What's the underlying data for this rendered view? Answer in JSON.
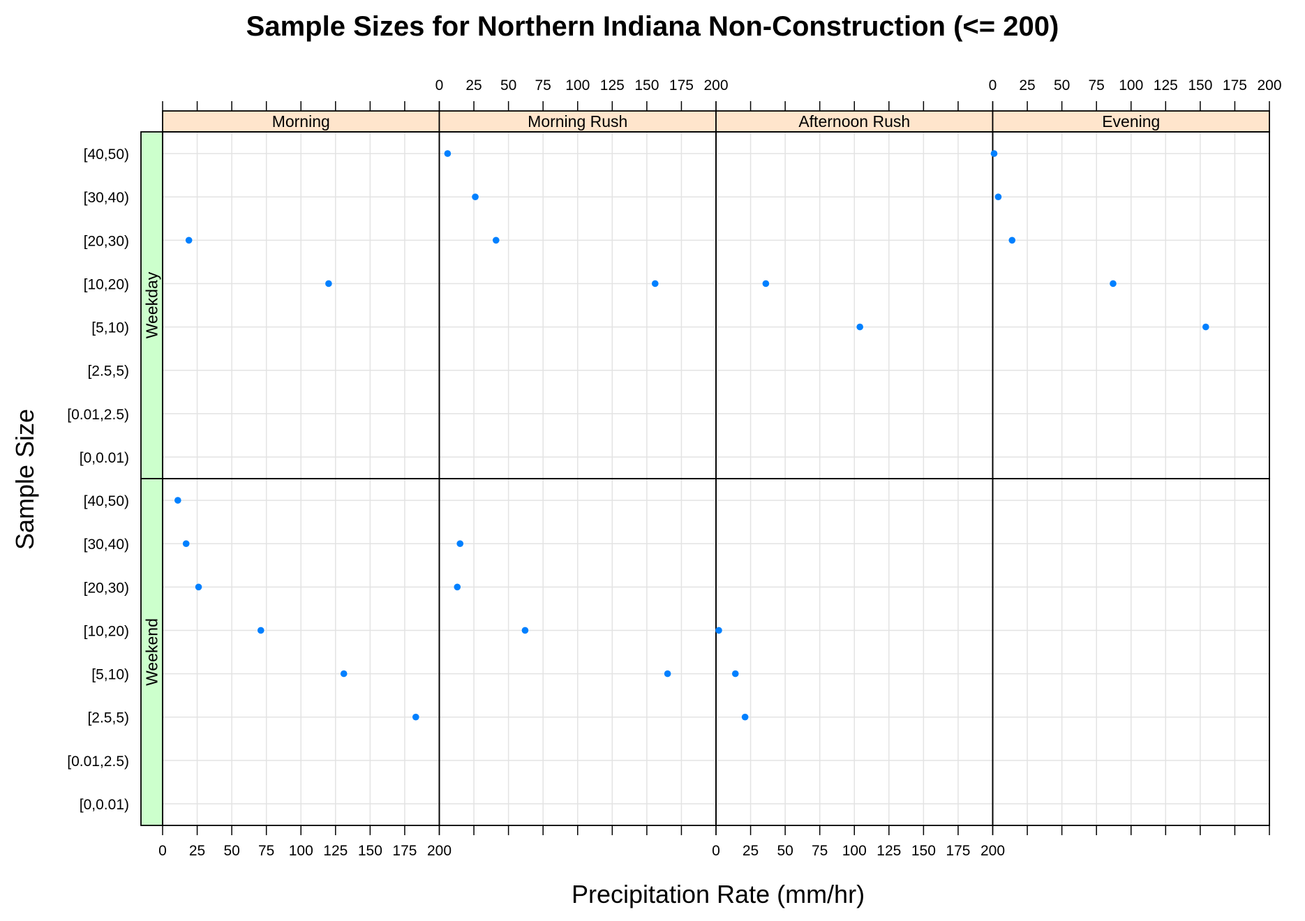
{
  "chart_data": {
    "type": "scatter",
    "title": "Sample Sizes for Northern Indiana Non-Construction (<= 200)",
    "xlabel": "Precipitation Rate (mm/hr)",
    "ylabel": "Sample Size",
    "xlim": [
      0,
      200
    ],
    "x_ticks": [
      0,
      25,
      50,
      75,
      100,
      125,
      150,
      175,
      200
    ],
    "x_tick_labels": [
      "0",
      "25",
      "50",
      "75",
      "100",
      "125",
      "150",
      "175",
      "200"
    ],
    "y_categories": [
      "[0,0.01)",
      "[0.01,2.5)",
      "[2.5,5)",
      "[5,10)",
      "[10,20)",
      "[20,30)",
      "[30,40)",
      "[40,50)"
    ],
    "grid": true,
    "columns": [
      "Morning",
      "Morning Rush",
      "Afternoon Rush",
      "Evening"
    ],
    "rows": [
      "Weekday",
      "Weekend"
    ],
    "strip_colors": {
      "column": "#ffe5cc",
      "row": "#ccffcc"
    },
    "point_color": "#0080ff",
    "panels": [
      {
        "column": "Morning",
        "row": "Weekday",
        "points": [
          {
            "x": 19,
            "y": "[20,30)"
          },
          {
            "x": 120,
            "y": "[10,20)"
          }
        ]
      },
      {
        "column": "Morning Rush",
        "row": "Weekday",
        "points": [
          {
            "x": 6,
            "y": "[40,50)"
          },
          {
            "x": 26,
            "y": "[30,40)"
          },
          {
            "x": 41,
            "y": "[20,30)"
          },
          {
            "x": 156,
            "y": "[10,20)"
          }
        ]
      },
      {
        "column": "Afternoon Rush",
        "row": "Weekday",
        "points": [
          {
            "x": 36,
            "y": "[10,20)"
          },
          {
            "x": 104,
            "y": "[5,10)"
          }
        ]
      },
      {
        "column": "Evening",
        "row": "Weekday",
        "points": [
          {
            "x": 1,
            "y": "[40,50)"
          },
          {
            "x": 4,
            "y": "[30,40)"
          },
          {
            "x": 14,
            "y": "[20,30)"
          },
          {
            "x": 87,
            "y": "[10,20)"
          },
          {
            "x": 154,
            "y": "[5,10)"
          }
        ]
      },
      {
        "column": "Morning",
        "row": "Weekend",
        "points": [
          {
            "x": 11,
            "y": "[40,50)"
          },
          {
            "x": 17,
            "y": "[30,40)"
          },
          {
            "x": 26,
            "y": "[20,30)"
          },
          {
            "x": 71,
            "y": "[10,20)"
          },
          {
            "x": 131,
            "y": "[5,10)"
          },
          {
            "x": 183,
            "y": "[2.5,5)"
          }
        ]
      },
      {
        "column": "Morning Rush",
        "row": "Weekend",
        "points": [
          {
            "x": 15,
            "y": "[30,40)"
          },
          {
            "x": 13,
            "y": "[20,30)"
          },
          {
            "x": 62,
            "y": "[10,20)"
          },
          {
            "x": 165,
            "y": "[5,10)"
          }
        ]
      },
      {
        "column": "Afternoon Rush",
        "row": "Weekend",
        "points": [
          {
            "x": 2,
            "y": "[10,20)"
          },
          {
            "x": 14,
            "y": "[5,10)"
          },
          {
            "x": 21,
            "y": "[2.5,5)"
          }
        ]
      },
      {
        "column": "Evening",
        "row": "Weekend",
        "points": []
      }
    ]
  }
}
